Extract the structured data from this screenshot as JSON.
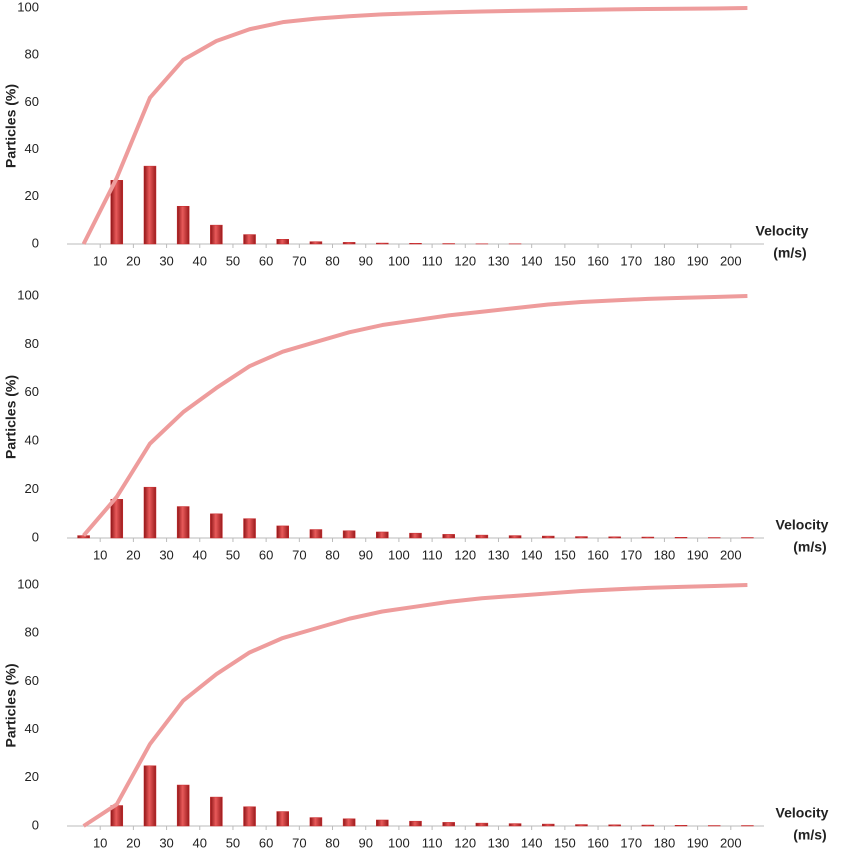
{
  "chart_data": [
    {
      "type": "bar",
      "ylabel": "Particles (%)",
      "xlabel": [
        "Velocity",
        "(m/s)"
      ],
      "x": [
        5,
        15,
        25,
        35,
        45,
        55,
        65,
        75,
        85,
        95,
        105,
        115,
        125,
        135,
        145,
        155,
        165,
        175,
        185,
        195,
        205
      ],
      "xlim": [
        0,
        210
      ],
      "xticks": [
        10,
        20,
        30,
        40,
        50,
        60,
        70,
        80,
        90,
        100,
        110,
        120,
        130,
        140,
        150,
        160,
        170,
        180,
        190,
        200
      ],
      "ylim": [
        0,
        100
      ],
      "yticks": [
        0,
        20,
        40,
        60,
        80,
        100
      ],
      "grid": false,
      "series": [
        {
          "kind": "bar",
          "color": "#c8282a",
          "values": [
            0,
            27,
            33,
            16,
            8,
            4,
            2,
            1,
            0.7,
            0.4,
            0.3,
            0.2,
            0.1,
            0.1,
            0,
            0,
            0,
            0,
            0,
            0,
            0
          ]
        },
        {
          "kind": "line",
          "color": "#ee9c9c",
          "values": [
            0,
            28,
            62,
            78,
            86,
            91,
            94,
            95.5,
            96.5,
            97.3,
            97.8,
            98.2,
            98.5,
            98.8,
            99,
            99.2,
            99.4,
            99.6,
            99.7,
            99.8,
            100
          ]
        }
      ]
    },
    {
      "type": "bar",
      "ylabel": "Particles (%)",
      "xlabel": [
        "Velocity",
        "(m/s)"
      ],
      "x": [
        5,
        15,
        25,
        35,
        45,
        55,
        65,
        75,
        85,
        95,
        105,
        115,
        125,
        135,
        145,
        155,
        165,
        175,
        185,
        195,
        205
      ],
      "xlim": [
        0,
        210
      ],
      "xticks": [
        10,
        20,
        30,
        40,
        50,
        60,
        70,
        80,
        90,
        100,
        110,
        120,
        130,
        140,
        150,
        160,
        170,
        180,
        190,
        200
      ],
      "ylim": [
        0,
        100
      ],
      "yticks": [
        0,
        20,
        40,
        60,
        80,
        100
      ],
      "grid": false,
      "series": [
        {
          "kind": "bar",
          "color": "#c8282a",
          "values": [
            1,
            16,
            21,
            13,
            10,
            8,
            5,
            3.5,
            3,
            2.5,
            2,
            1.5,
            1.2,
            1,
            0.8,
            0.6,
            0.5,
            0.4,
            0.3,
            0.2,
            0.2
          ]
        },
        {
          "kind": "line",
          "color": "#ee9c9c",
          "values": [
            1,
            17,
            39,
            52,
            62,
            71,
            77,
            81,
            85,
            88,
            90,
            92,
            93.5,
            95,
            96.5,
            97.5,
            98.2,
            98.8,
            99.2,
            99.6,
            100
          ]
        }
      ]
    },
    {
      "type": "bar",
      "ylabel": "Particles (%)",
      "xlabel": [
        "Velocity",
        "(m/s)"
      ],
      "x": [
        5,
        15,
        25,
        35,
        45,
        55,
        65,
        75,
        85,
        95,
        105,
        115,
        125,
        135,
        145,
        155,
        165,
        175,
        185,
        195,
        205
      ],
      "xlim": [
        0,
        210
      ],
      "xticks": [
        10,
        20,
        30,
        40,
        50,
        60,
        70,
        80,
        90,
        100,
        110,
        120,
        130,
        140,
        150,
        160,
        170,
        180,
        190,
        200
      ],
      "ylim": [
        0,
        100
      ],
      "yticks": [
        0,
        20,
        40,
        60,
        80,
        100
      ],
      "grid": false,
      "series": [
        {
          "kind": "bar",
          "color": "#c8282a",
          "values": [
            0,
            8.5,
            25,
            17,
            12,
            8,
            6,
            3.5,
            3,
            2.5,
            2,
            1.5,
            1.2,
            1,
            0.8,
            0.6,
            0.5,
            0.4,
            0.3,
            0.2,
            0.2
          ]
        },
        {
          "kind": "line",
          "color": "#ee9c9c",
          "values": [
            0,
            9,
            34,
            52,
            63,
            72,
            78,
            82,
            86,
            89,
            91,
            93,
            94.5,
            95.5,
            96.5,
            97.5,
            98.2,
            98.8,
            99.2,
            99.6,
            100
          ]
        }
      ]
    }
  ]
}
